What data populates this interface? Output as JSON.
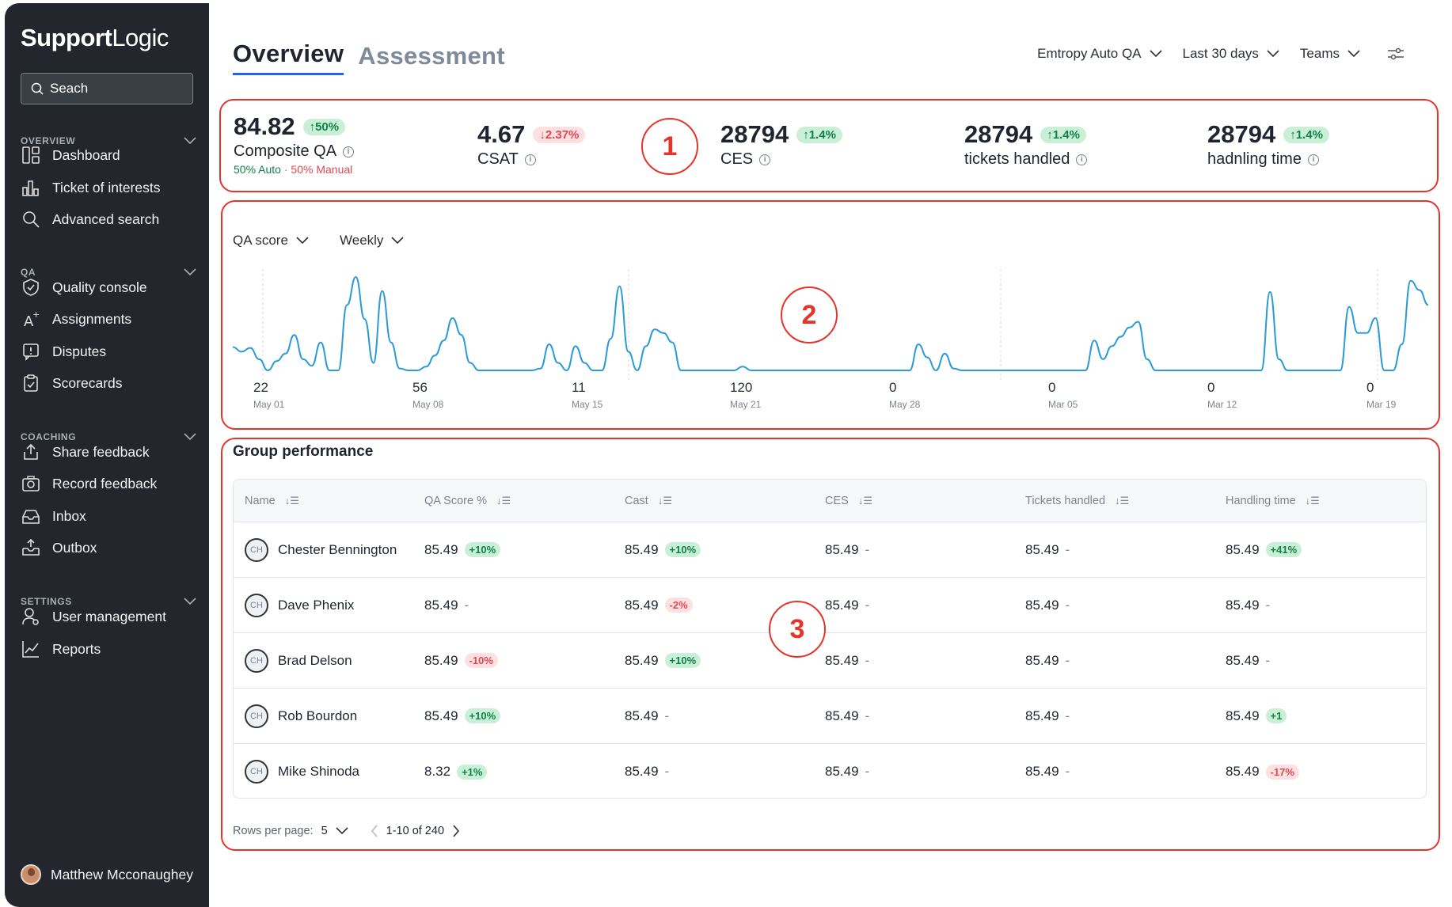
{
  "sidebar": {
    "logo_bold": "Support",
    "logo_light": "Logic",
    "search_placeholder": "Seach",
    "sections": [
      {
        "title": "OVERVIEW",
        "items": [
          "Dashboard",
          "Ticket of interests",
          "Advanced search"
        ]
      },
      {
        "title": "QA",
        "items": [
          "Quality console",
          "Assignments",
          "Disputes",
          "Scorecards"
        ]
      },
      {
        "title": "COACHING",
        "items": [
          "Share feedback",
          "Record feedback",
          "Inbox",
          "Outbox"
        ]
      },
      {
        "title": "SETTINGS",
        "items": [
          "User management",
          "Reports"
        ]
      }
    ],
    "user_name": "Matthew Mcconaughey"
  },
  "header": {
    "tabs": [
      "Overview",
      "Assessment"
    ],
    "filters": [
      "Emtropy Auto QA",
      "Last 30 days",
      "Teams"
    ]
  },
  "kpis": [
    {
      "value": "84.82",
      "delta": "50%",
      "dir": "up",
      "label": "Composite QA",
      "split_auto": "50%",
      "split_auto_label": "Auto",
      "split_sep": "·",
      "split_manual": "50%",
      "split_manual_label": "Manual"
    },
    {
      "value": "4.67",
      "delta": "2.37%",
      "dir": "down",
      "label": "CSAT"
    },
    {
      "value": "28794",
      "delta": "1.4%",
      "dir": "up",
      "label": "CES"
    },
    {
      "value": "28794",
      "delta": "1.4%",
      "dir": "up",
      "label": "tickets handled"
    },
    {
      "value": "28794",
      "delta": "1.4%",
      "dir": "up",
      "label": "hadnling time"
    }
  ],
  "annotations": [
    "1",
    "2",
    "3"
  ],
  "chart_controls": {
    "metric": "QA score",
    "period": "Weekly"
  },
  "chart_data": {
    "type": "line",
    "title": "QA score",
    "x_ticks": [
      {
        "value": "22",
        "date": "May 01"
      },
      {
        "value": "56",
        "date": "May 08"
      },
      {
        "value": "11",
        "date": "May 15"
      },
      {
        "value": "120",
        "date": "May 21"
      },
      {
        "value": "0",
        "date": "May 28"
      },
      {
        "value": "0",
        "date": "Mar 05"
      },
      {
        "value": "0",
        "date": "Mar 12"
      },
      {
        "value": "0",
        "date": "Mar 19"
      }
    ],
    "values": [
      25,
      20,
      24,
      12,
      0,
      10,
      18,
      38,
      12,
      5,
      30,
      0,
      0,
      70,
      100,
      55,
      8,
      85,
      30,
      2,
      0,
      0,
      4,
      16,
      32,
      56,
      38,
      8,
      0,
      0,
      0,
      0,
      0,
      0,
      0,
      2,
      28,
      8,
      0,
      26,
      8,
      0,
      0,
      34,
      90,
      20,
      0,
      26,
      44,
      40,
      30,
      0,
      0,
      0,
      0,
      0,
      0,
      0,
      4,
      0,
      0,
      0,
      0,
      0,
      0,
      0,
      0,
      0,
      0,
      0,
      0,
      0,
      0,
      0,
      0,
      0,
      0,
      0,
      28,
      14,
      0,
      18,
      2,
      0,
      0,
      0,
      0,
      0,
      0,
      0,
      0,
      0,
      0,
      0,
      0,
      0,
      0,
      0,
      32,
      12,
      26,
      36,
      46,
      52,
      12,
      0,
      0,
      0,
      0,
      0,
      0,
      0,
      0,
      0,
      0,
      0,
      0,
      0,
      84,
      12,
      0,
      0,
      0,
      0,
      0,
      0,
      0,
      68,
      40,
      40,
      56,
      0,
      0,
      28,
      96,
      86,
      70
    ],
    "ylim": [
      0,
      100
    ]
  },
  "group": {
    "title": "Group performance",
    "columns": [
      "Name",
      "QA Score %",
      "Cast",
      "CES",
      "Tickets handled",
      "Handling time"
    ],
    "rows": [
      {
        "initials": "CH",
        "name": "Chester Bennington",
        "cells": [
          [
            "85.49",
            "+10%",
            "g"
          ],
          [
            "85.49",
            "+10%",
            "g"
          ],
          [
            "85.49",
            "-",
            ""
          ],
          [
            "85.49",
            "-",
            ""
          ],
          [
            "85.49",
            "+41%",
            "g"
          ]
        ]
      },
      {
        "initials": "CH",
        "name": "Dave Phenix",
        "cells": [
          [
            "85.49",
            "-",
            ""
          ],
          [
            "85.49",
            "-2%",
            "r"
          ],
          [
            "85.49",
            "-",
            ""
          ],
          [
            "85.49",
            "-",
            ""
          ],
          [
            "85.49",
            "-",
            ""
          ]
        ]
      },
      {
        "initials": "CH",
        "name": "Brad Delson",
        "cells": [
          [
            "85.49",
            "-10%",
            "r"
          ],
          [
            "85.49",
            "+10%",
            "g"
          ],
          [
            "85.49",
            "-",
            ""
          ],
          [
            "85.49",
            "-",
            ""
          ],
          [
            "85.49",
            "-",
            ""
          ]
        ]
      },
      {
        "initials": "CH",
        "name": "Rob Bourdon",
        "cells": [
          [
            "85.49",
            "+10%",
            "g"
          ],
          [
            "85.49",
            "-",
            ""
          ],
          [
            "85.49",
            "-",
            ""
          ],
          [
            "85.49",
            "-",
            ""
          ],
          [
            "85.49",
            "+1",
            "g"
          ]
        ]
      },
      {
        "initials": "CH",
        "name": "Mike Shinoda",
        "cells": [
          [
            "8.32",
            "+1%",
            "g"
          ],
          [
            "85.49",
            "-",
            ""
          ],
          [
            "85.49",
            "-",
            ""
          ],
          [
            "85.49",
            "-",
            ""
          ],
          [
            "85.49",
            "-17%",
            "r"
          ]
        ]
      }
    ],
    "rows_per_page_label": "Rows per page:",
    "rows_per_page": "5",
    "range": "1-10 of 240"
  },
  "colors": {
    "accent": "#2563eb",
    "annotation": "#e4352a",
    "line": "#2a9bd8",
    "sidebar": "#23272d"
  }
}
